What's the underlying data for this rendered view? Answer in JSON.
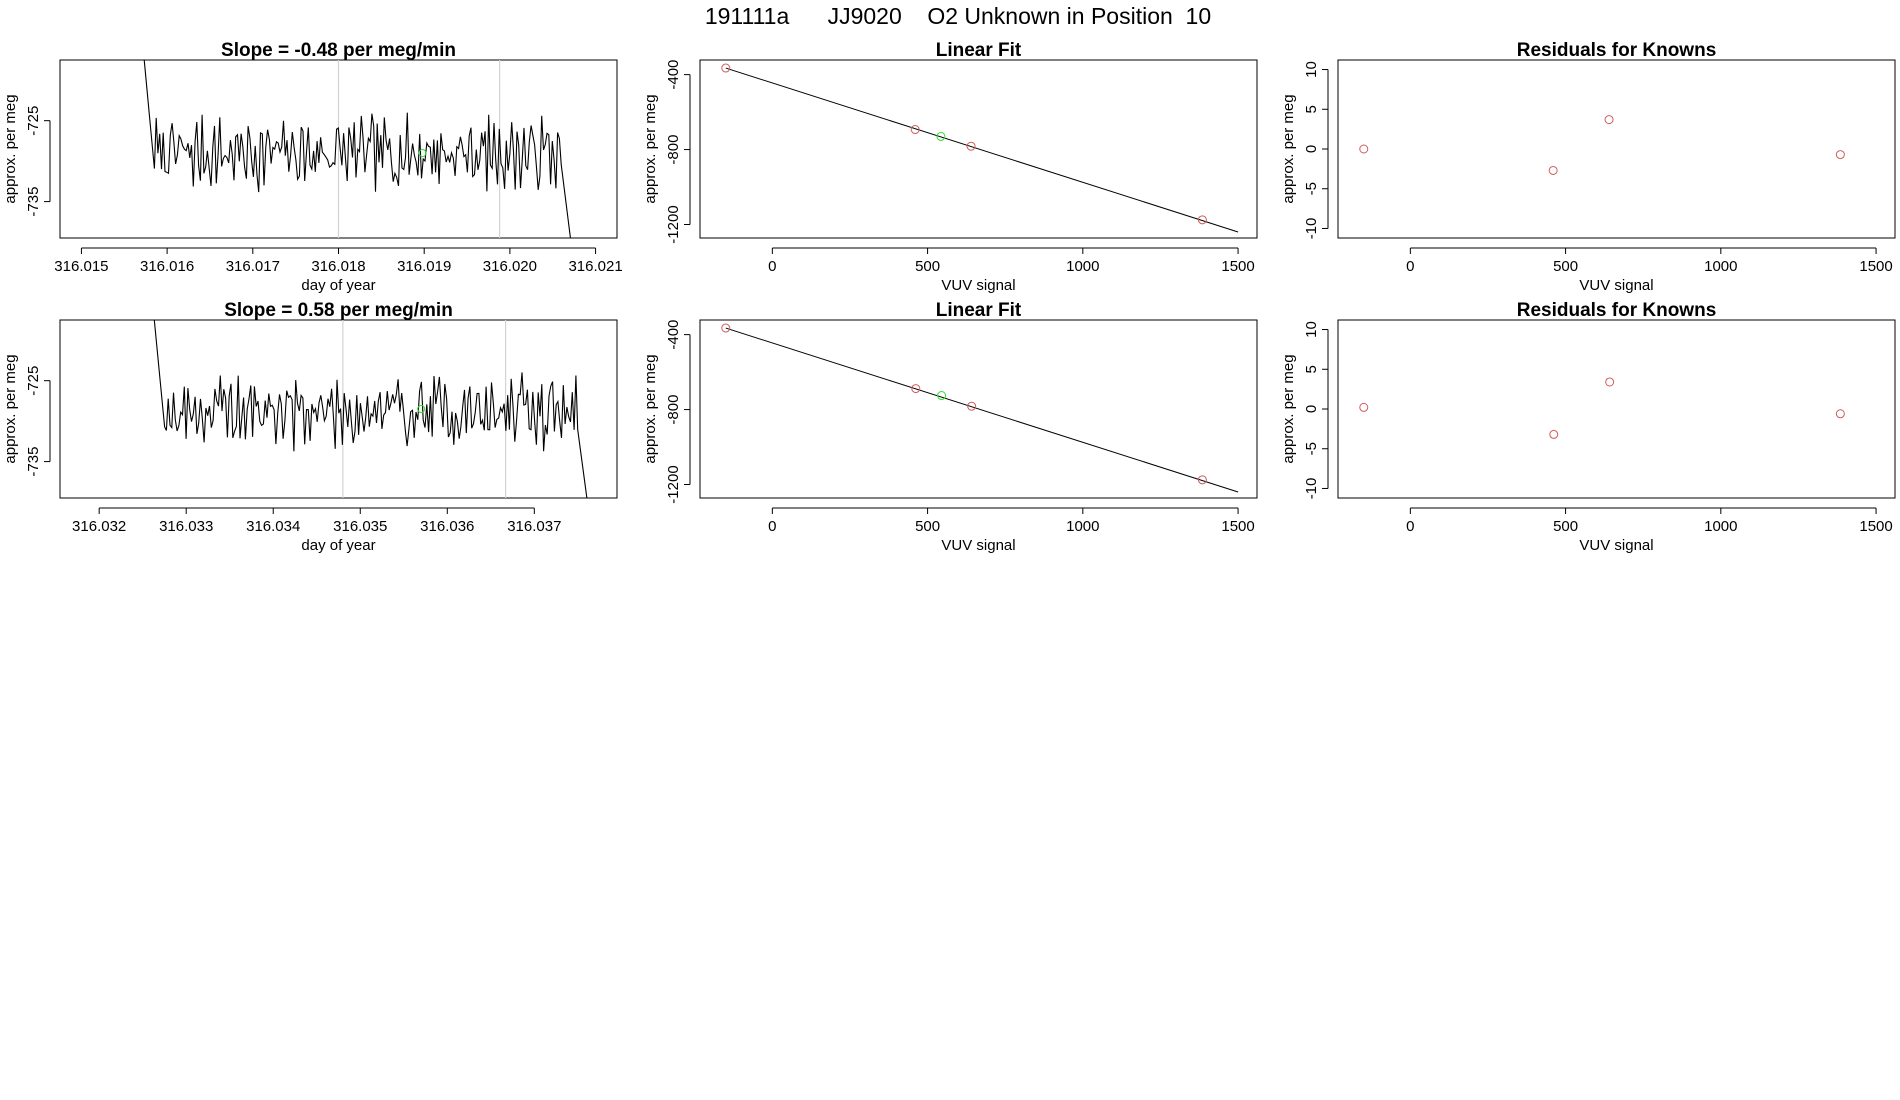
{
  "title": "191111a      JJ9020    O2 Unknown in Position  10",
  "colors": {
    "known": "#cd5c5c",
    "unknown": "#33dd33",
    "line": "#000000",
    "marker": "#d3d3d3"
  },
  "chart_data": [
    {
      "type": "line",
      "title": "Slope =  -0.48  per meg/min",
      "xlabel": "day of year",
      "ylabel": "approx. per meg",
      "xlim": [
        316.01475,
        316.02125
      ],
      "ylim": [
        -739.5,
        -717.5
      ],
      "xticks": [
        316.015,
        316.016,
        316.017,
        316.018,
        316.019,
        316.02,
        316.021
      ],
      "xtick_labels": [
        "316.015",
        "316.016",
        "316.017",
        "316.018",
        "316.019",
        "316.020",
        "316.021"
      ],
      "yticks": [
        -735,
        -725
      ],
      "ytick_labels": [
        "-735",
        "-725"
      ],
      "vlines": [
        316.018,
        316.01988
      ],
      "unknown_point": {
        "x": 316.01898,
        "y": -729.0
      },
      "trace": {
        "x_start": 316.0157,
        "x_end": 316.02075,
        "mean": -729,
        "amp": 2.3,
        "seed": 7,
        "n": 230
      }
    },
    {
      "type": "scatter",
      "title": "Linear Fit",
      "xlabel": "VUV signal",
      "ylabel": "approx. per meg",
      "xlim": [
        -233,
        1561
      ],
      "ylim": [
        -1272,
        -322
      ],
      "xticks": [
        0,
        500,
        1000,
        1500
      ],
      "xtick_labels": [
        "0",
        "500",
        "1000",
        "1500"
      ],
      "yticks": [
        -1200,
        -800,
        -400
      ],
      "ytick_labels": [
        "-1200",
        "-800",
        "-400"
      ],
      "known_points": [
        {
          "x": -150,
          "y": -365
        },
        {
          "x": 460,
          "y": -693
        },
        {
          "x": 640,
          "y": -782
        },
        {
          "x": 1385,
          "y": -1175
        }
      ],
      "unknown_points": [
        {
          "x": 543,
          "y": -730
        }
      ],
      "fit_line": {
        "x1": -150,
        "y1": -365,
        "x2": 1500,
        "y2": -1240
      }
    },
    {
      "type": "scatter",
      "title": "Residuals for Knowns",
      "xlabel": "VUV signal",
      "ylabel": "approx. per meg",
      "xlim": [
        -233,
        1561
      ],
      "ylim": [
        -11.2,
        11.2
      ],
      "xticks": [
        0,
        500,
        1000,
        1500
      ],
      "xtick_labels": [
        "0",
        "500",
        "1000",
        "1500"
      ],
      "yticks": [
        -10,
        -5,
        0,
        5,
        10
      ],
      "ytick_labels": [
        "-10",
        "-5",
        "0",
        "5",
        "10"
      ],
      "known_points": [
        {
          "x": -150,
          "y": 0.0
        },
        {
          "x": 460,
          "y": -2.7
        },
        {
          "x": 640,
          "y": 3.7
        },
        {
          "x": 1385,
          "y": -0.7
        }
      ]
    },
    {
      "type": "line",
      "title": "Slope =  0.58  per meg/min",
      "xlabel": "day of year",
      "ylabel": "approx. per meg",
      "xlim": [
        316.03155,
        316.03795
      ],
      "ylim": [
        -739.5,
        -717.5
      ],
      "xticks": [
        316.032,
        316.033,
        316.034,
        316.035,
        316.036,
        316.037
      ],
      "xtick_labels": [
        "316.032",
        "316.033",
        "316.034",
        "316.035",
        "316.036",
        "316.037"
      ],
      "yticks": [
        -735,
        -725
      ],
      "ytick_labels": [
        "-735",
        "-725"
      ],
      "vlines": [
        316.0348,
        316.03667
      ],
      "unknown_point": {
        "x": 316.0357,
        "y": -728.5
      },
      "trace": {
        "x_start": 316.0326,
        "x_end": 316.03765,
        "mean": -728.8,
        "amp": 2.3,
        "seed": 19,
        "n": 230
      }
    },
    {
      "type": "scatter",
      "title": "Linear Fit",
      "xlabel": "VUV signal",
      "ylabel": "approx. per meg",
      "xlim": [
        -233,
        1561
      ],
      "ylim": [
        -1272,
        -322
      ],
      "xticks": [
        0,
        500,
        1000,
        1500
      ],
      "xtick_labels": [
        "0",
        "500",
        "1000",
        "1500"
      ],
      "yticks": [
        -1200,
        -800,
        -400
      ],
      "ytick_labels": [
        "-1200",
        "-800",
        "-400"
      ],
      "known_points": [
        {
          "x": -150,
          "y": -365
        },
        {
          "x": 462,
          "y": -688
        },
        {
          "x": 642,
          "y": -782
        },
        {
          "x": 1385,
          "y": -1175
        }
      ],
      "unknown_points": [
        {
          "x": 545,
          "y": -725
        }
      ],
      "fit_line": {
        "x1": -150,
        "y1": -365,
        "x2": 1500,
        "y2": -1240
      }
    },
    {
      "type": "scatter",
      "title": "Residuals for Knowns",
      "xlabel": "VUV signal",
      "ylabel": "approx. per meg",
      "xlim": [
        -233,
        1561
      ],
      "ylim": [
        -11.2,
        11.2
      ],
      "xticks": [
        0,
        500,
        1000,
        1500
      ],
      "xtick_labels": [
        "0",
        "500",
        "1000",
        "1500"
      ],
      "yticks": [
        -10,
        -5,
        0,
        5,
        10
      ],
      "ytick_labels": [
        "-10",
        "-5",
        "0",
        "5",
        "10"
      ],
      "known_points": [
        {
          "x": -150,
          "y": 0.2
        },
        {
          "x": 462,
          "y": -3.2
        },
        {
          "x": 642,
          "y": 3.4
        },
        {
          "x": 1385,
          "y": -0.6
        }
      ]
    }
  ]
}
